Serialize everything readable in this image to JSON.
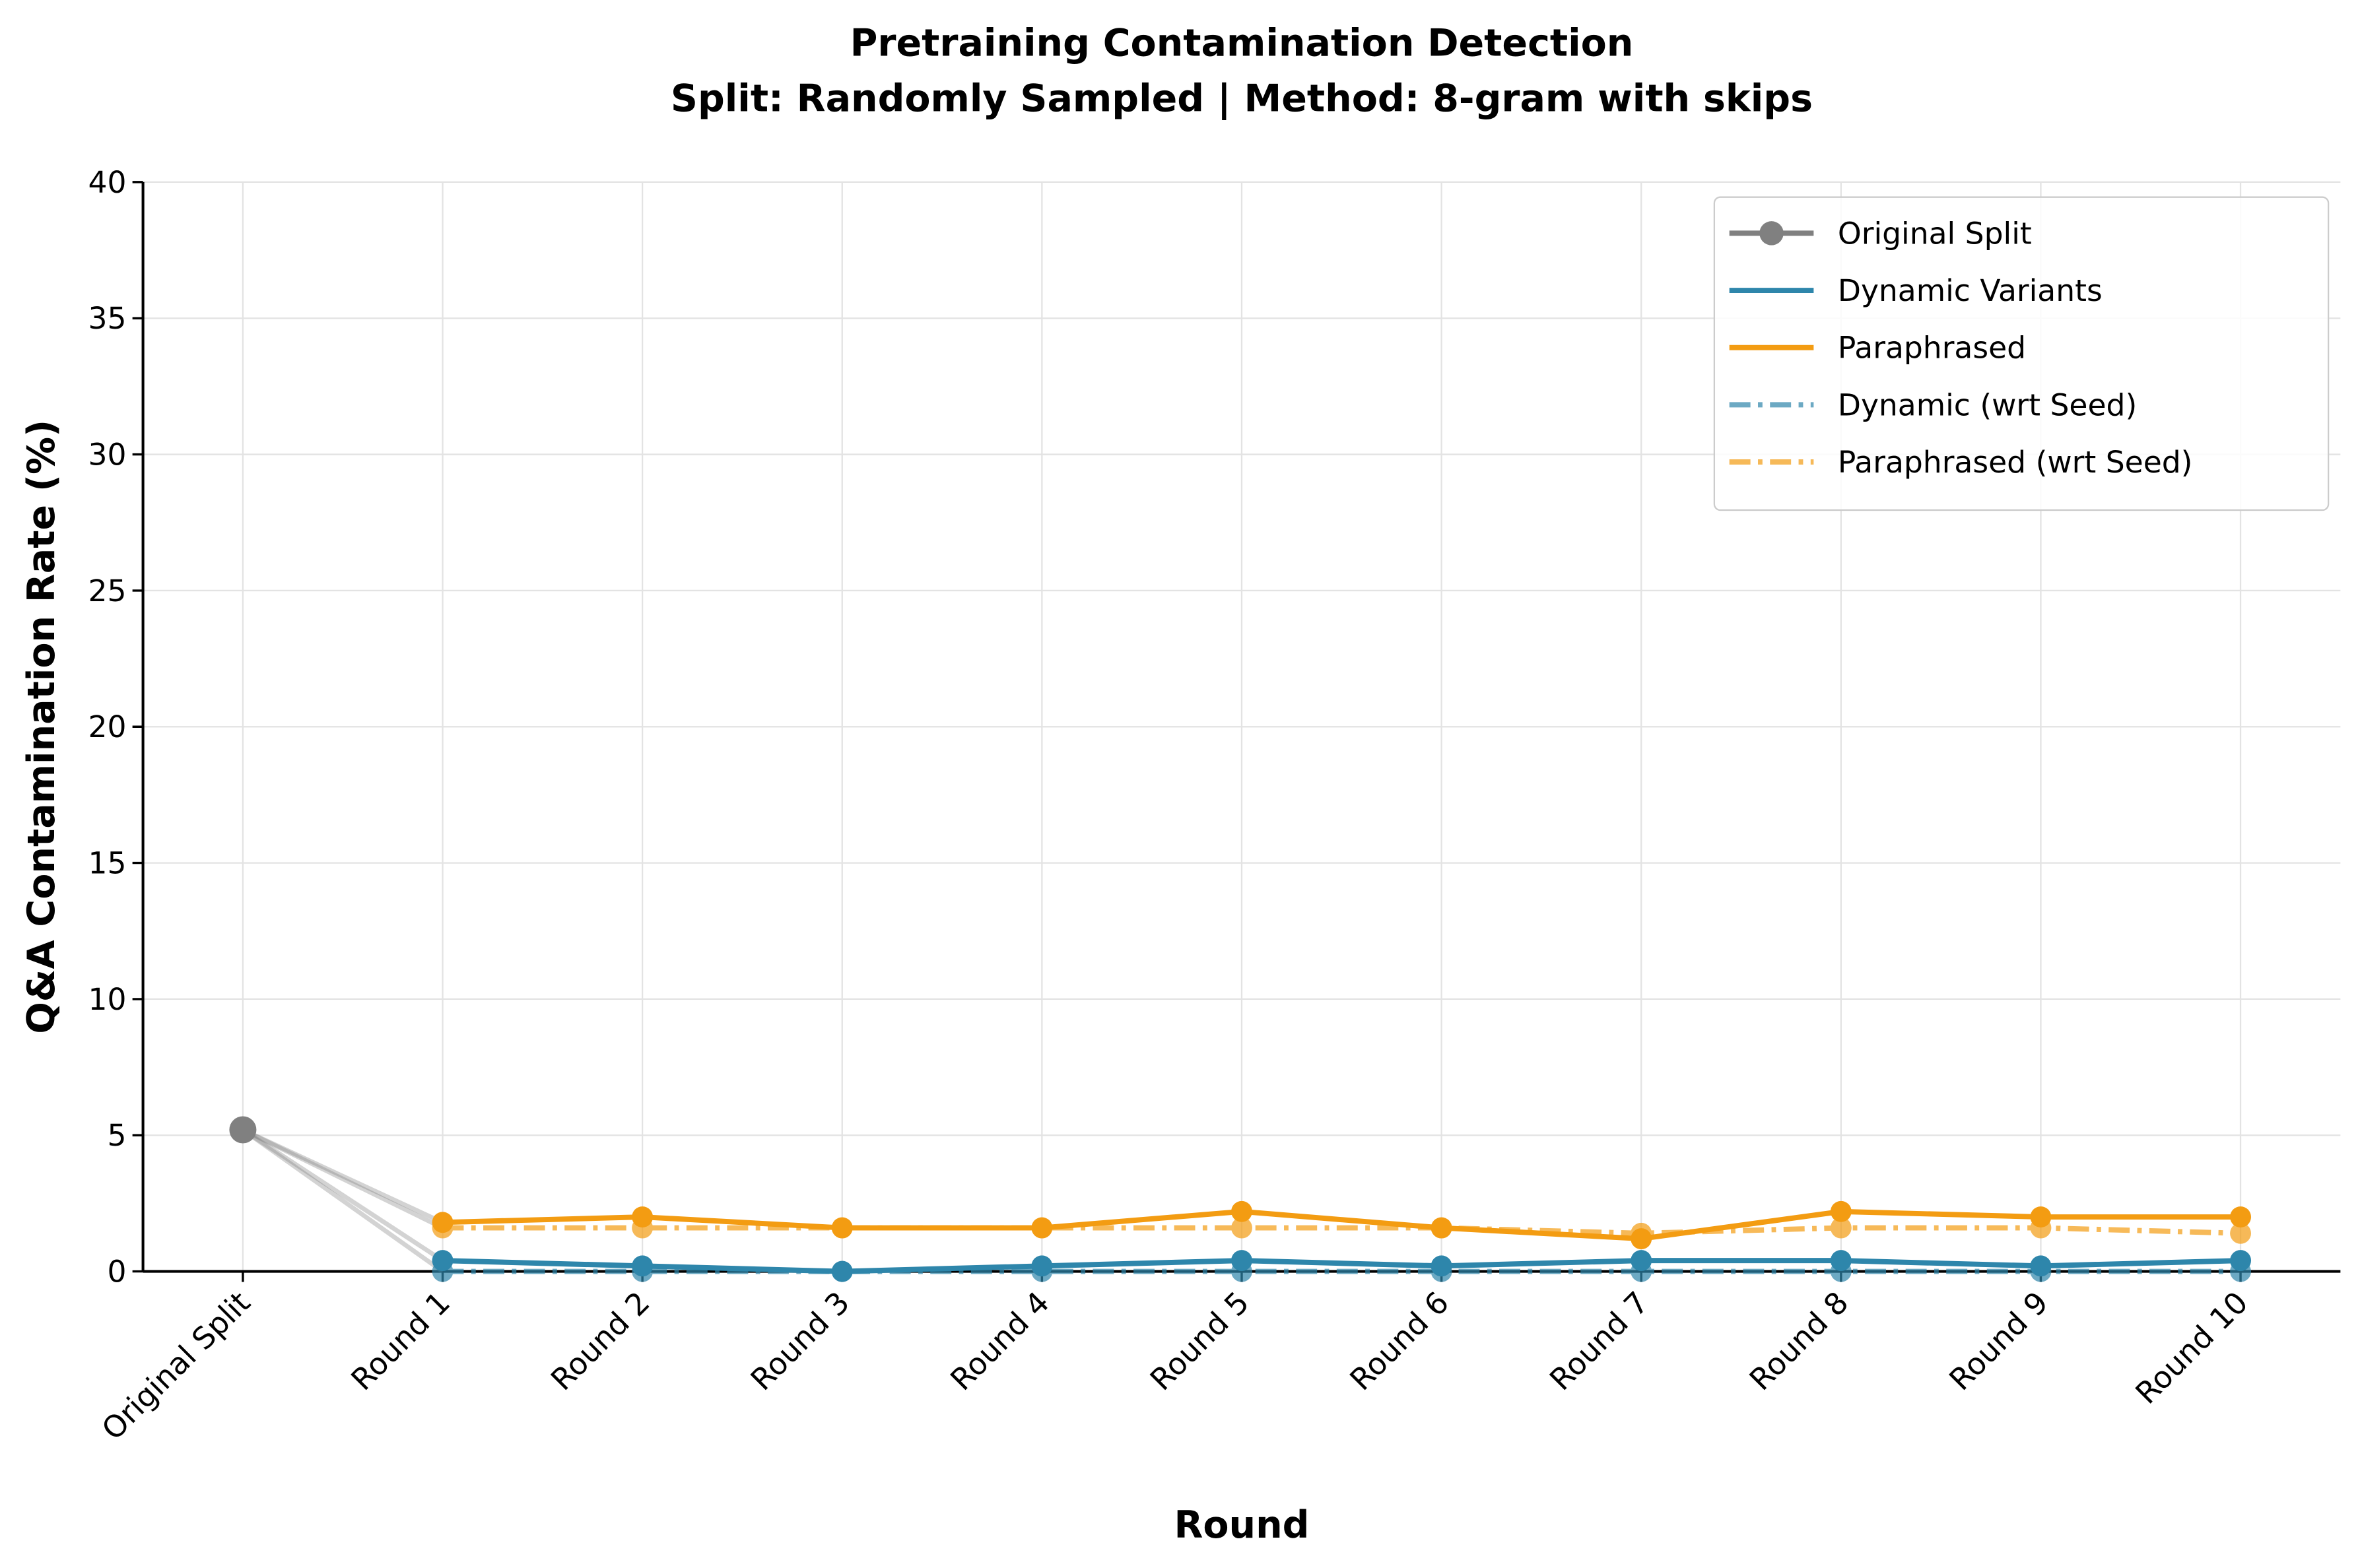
{
  "chart_data": {
    "type": "line",
    "title": "Pretraining Contamination Detection",
    "subtitle": "Split: Randomly Sampled | Method: 8-gram with skips",
    "x_label": "Round",
    "y_label": "Q&A Contamination Rate (%)",
    "categories": [
      "Original Split",
      "Round 1",
      "Round 2",
      "Round 3",
      "Round 4",
      "Round 5",
      "Round 6",
      "Round 7",
      "Round 8",
      "Round 9",
      "Round 10"
    ],
    "series": [
      {
        "name": "Original Split",
        "color": "#808080",
        "dash": "solid",
        "alpha": 1,
        "values": [
          5.2,
          null,
          null,
          null,
          null,
          null,
          null,
          null,
          null,
          null,
          null
        ]
      },
      {
        "name": "Dynamic Variants",
        "color": "#2e86ab",
        "dash": "solid",
        "alpha": 1,
        "values": [
          null,
          0.4,
          0.2,
          0.0,
          0.2,
          0.4,
          0.2,
          0.4,
          0.4,
          0.2,
          0.4
        ]
      },
      {
        "name": "Paraphrased",
        "color": "#f39c12",
        "dash": "solid",
        "alpha": 1,
        "values": [
          null,
          1.8,
          2.0,
          1.6,
          1.6,
          2.2,
          1.6,
          1.2,
          2.2,
          2.0,
          2.0
        ]
      },
      {
        "name": "Dynamic (wrt Seed)",
        "color": "#2e86ab",
        "dash": "dashdot",
        "alpha": 0.7,
        "values": [
          null,
          0.0,
          0.0,
          0.0,
          0.0,
          0.0,
          0.0,
          0.0,
          0.0,
          0.0,
          0.0
        ]
      },
      {
        "name": "Paraphrased (wrt Seed)",
        "color": "#f39c12",
        "dash": "dashdot",
        "alpha": 0.7,
        "values": [
          null,
          1.6,
          1.6,
          1.6,
          1.6,
          1.6,
          1.6,
          1.4,
          1.6,
          1.6,
          1.4
        ]
      }
    ],
    "ylim": [
      0,
      40
    ],
    "yticks": [
      0,
      5,
      10,
      15,
      20,
      25,
      30,
      35,
      40
    ],
    "grid": true,
    "legend": "upper right"
  }
}
